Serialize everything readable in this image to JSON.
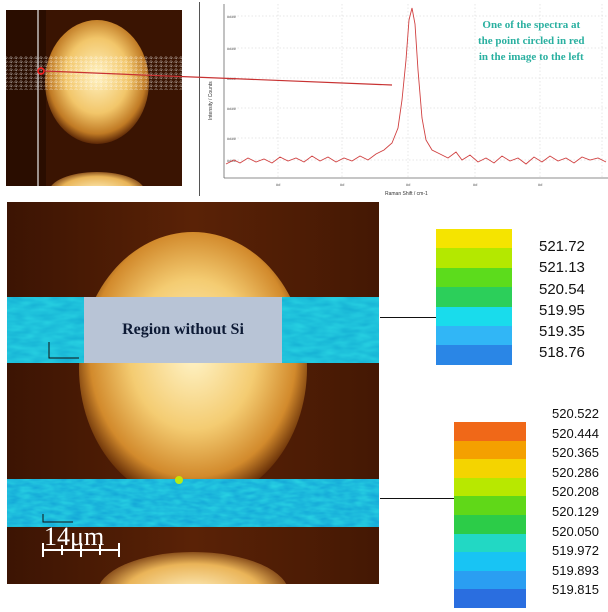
{
  "spectrum": {
    "annotation_lines": [
      "One of the spectra at",
      "the point circled in red",
      "in the image to the left"
    ],
    "ylabel": "Intensity / Counts",
    "xlabel": "Raman Shift / cm-1"
  },
  "region_label": "Region without Si",
  "scale_bar_label": "14μm",
  "legend_top": {
    "colors": [
      "#f5e400",
      "#b4e800",
      "#5cdc1c",
      "#2ccf5a",
      "#19dcec",
      "#31b6f6",
      "#2a86e6"
    ],
    "labels": [
      "521.72",
      "521.13",
      "520.54",
      "519.95",
      "519.35",
      "518.76"
    ]
  },
  "legend_bottom": {
    "colors": [
      "#f06818",
      "#f4a000",
      "#f4d400",
      "#b8e800",
      "#60d818",
      "#2ccc48",
      "#22d8c4",
      "#18c4f4",
      "#2a9ef2",
      "#2a6ee0"
    ],
    "labels": [
      "520.522",
      "520.444",
      "520.365",
      "520.286",
      "520.208",
      "520.129",
      "520.050",
      "519.972",
      "519.893",
      "519.815"
    ]
  }
}
